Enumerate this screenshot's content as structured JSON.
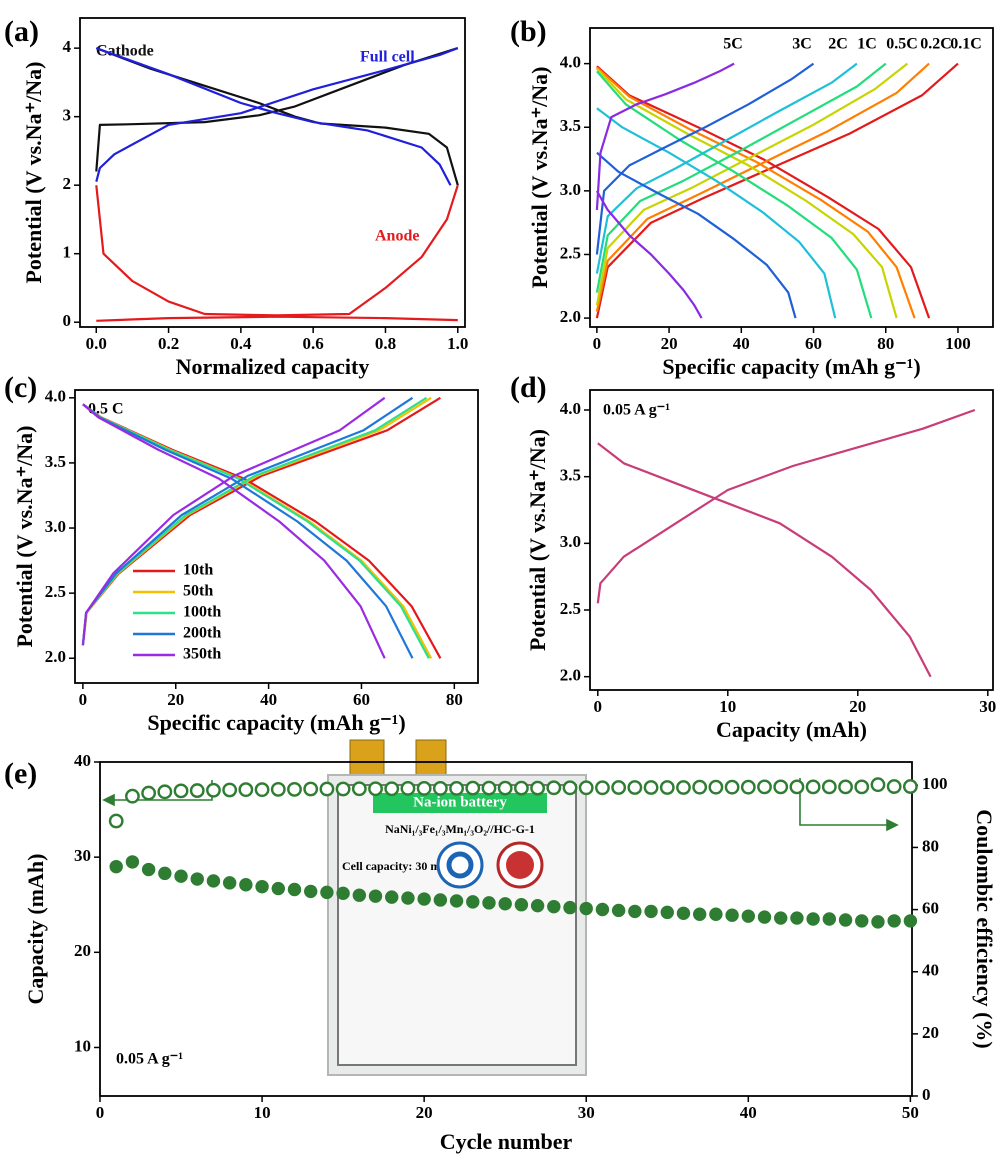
{
  "chart_data": [
    {
      "type": "line",
      "panel": "(a)",
      "xlabel": "Normalized capacity",
      "ylabel": "Potential (V vs.Na⁺/Na)",
      "xlim": [
        -0.045,
        1.02
      ],
      "ylim": [
        -0.07,
        4.44
      ],
      "xticks": [
        {
          "value": 0,
          "label": "0.0"
        },
        0.2,
        0.4,
        0.6,
        0.8,
        {
          "value": 1,
          "label": "1.0"
        }
      ],
      "yticks": [
        0,
        1,
        2,
        3,
        4
      ],
      "series": [
        {
          "name": "Cathode",
          "color": "#111111",
          "x": [
            0,
            0.01,
            0.1,
            0.3,
            0.45,
            0.55,
            0.7,
            0.85,
            1.0,
            null,
            0,
            0.15,
            0.3,
            0.45,
            0.55,
            0.62,
            0.8,
            0.92,
            0.97,
            1.0
          ],
          "values": [
            2.2,
            2.88,
            2.89,
            2.92,
            3.02,
            3.15,
            3.45,
            3.75,
            4.0,
            null,
            4.0,
            3.7,
            3.45,
            3.2,
            3.0,
            2.9,
            2.84,
            2.75,
            2.55,
            2.0
          ]
        },
        {
          "name": "Full cell",
          "color": "#1f1fdc",
          "x": [
            0,
            0.01,
            0.05,
            0.2,
            0.4,
            0.6,
            0.8,
            0.95,
            1.0,
            null,
            0,
            0.2,
            0.4,
            0.5,
            0.6,
            0.75,
            0.9,
            0.95,
            0.98
          ],
          "values": [
            2.05,
            2.25,
            2.45,
            2.88,
            3.05,
            3.4,
            3.68,
            3.9,
            4.0,
            null,
            4.0,
            3.62,
            3.2,
            3.05,
            2.92,
            2.8,
            2.55,
            2.3,
            2.0
          ]
        },
        {
          "name": "Anode",
          "color": "#e41a1c",
          "x": [
            0,
            0.02,
            0.1,
            0.2,
            0.3,
            0.5,
            0.7,
            0.8,
            0.9,
            0.97,
            1.0,
            null,
            0,
            0.2,
            0.5,
            0.8,
            1.0
          ],
          "values": [
            2.0,
            1.0,
            0.6,
            0.3,
            0.12,
            0.1,
            0.12,
            0.5,
            0.95,
            1.5,
            2.0,
            null,
            0.02,
            0.06,
            0.08,
            0.06,
            0.03
          ]
        }
      ]
    },
    {
      "type": "line",
      "panel": "(b)",
      "xlabel": "Specific capacity (mAh g⁻¹)",
      "ylabel": "Potential (V vs.Na⁺/Na)",
      "xlim": [
        -1.9,
        109.7
      ],
      "ylim": [
        1.93,
        4.28
      ],
      "xticks": [
        0,
        20,
        40,
        60,
        80,
        100
      ],
      "yticks": [
        {
          "value": 2,
          "label": "2.0"
        },
        2.5,
        {
          "value": 3,
          "label": "3.0"
        },
        3.5,
        {
          "value": 4,
          "label": "4.0"
        }
      ],
      "series": [
        {
          "name": "0.1C",
          "color": "#e31a1c",
          "x": [
            0,
            3,
            15,
            30,
            50,
            70,
            90,
            100,
            null,
            0,
            9,
            28,
            46,
            64,
            78,
            87,
            92
          ],
          "values": [
            2.0,
            2.4,
            2.75,
            2.95,
            3.2,
            3.45,
            3.75,
            4.0,
            null,
            3.98,
            3.75,
            3.5,
            3.25,
            2.95,
            2.7,
            2.4,
            2.0
          ]
        },
        {
          "name": "0.2C",
          "color": "#ff7f00",
          "x": [
            0,
            3,
            14,
            28,
            46,
            64,
            83,
            92,
            null,
            0,
            9,
            26,
            44,
            62,
            75,
            83,
            88
          ],
          "values": [
            2.05,
            2.45,
            2.78,
            2.97,
            3.22,
            3.47,
            3.77,
            4.0,
            null,
            3.97,
            3.74,
            3.48,
            3.23,
            2.93,
            2.68,
            2.4,
            2.0
          ]
        },
        {
          "name": "0.5C",
          "color": "#c8d400",
          "x": [
            0,
            3,
            13,
            26,
            43,
            60,
            77,
            86,
            null,
            0,
            8,
            25,
            42,
            58,
            71,
            79,
            83
          ],
          "values": [
            2.1,
            2.55,
            2.85,
            3.02,
            3.27,
            3.52,
            3.8,
            4.0,
            null,
            3.96,
            3.72,
            3.45,
            3.2,
            2.92,
            2.66,
            2.4,
            2.0
          ]
        },
        {
          "name": "1C",
          "color": "#22dd7a",
          "x": [
            0,
            3,
            12,
            24,
            40,
            56,
            72,
            80,
            null,
            0,
            8,
            23,
            38,
            53,
            65,
            72,
            76
          ],
          "values": [
            2.2,
            2.65,
            2.92,
            3.08,
            3.32,
            3.57,
            3.82,
            4.0,
            null,
            3.94,
            3.68,
            3.4,
            3.15,
            2.88,
            2.63,
            2.38,
            2.0
          ]
        },
        {
          "name": "2C",
          "color": "#1ec0d8",
          "x": [
            0,
            3,
            11,
            22,
            36,
            50,
            65,
            72,
            null,
            0,
            7,
            20,
            33,
            46,
            56,
            63,
            66
          ],
          "values": [
            2.35,
            2.8,
            3.02,
            3.18,
            3.4,
            3.62,
            3.85,
            4.0,
            null,
            3.65,
            3.5,
            3.3,
            3.08,
            2.83,
            2.6,
            2.35,
            2.0
          ]
        },
        {
          "name": "3C",
          "color": "#1f5fd8",
          "x": [
            0,
            2,
            9,
            18,
            30,
            42,
            54,
            60,
            null,
            0,
            6,
            17,
            28,
            38,
            47,
            53,
            55
          ],
          "values": [
            2.5,
            3.0,
            3.2,
            3.33,
            3.5,
            3.68,
            3.88,
            4.0,
            null,
            3.3,
            3.15,
            2.98,
            2.82,
            2.62,
            2.42,
            2.2,
            2.0
          ]
        },
        {
          "name": "5C",
          "color": "#8a2be2",
          "x": [
            0,
            1,
            4,
            11,
            19,
            27,
            34,
            38,
            null,
            0,
            3,
            9,
            15,
            20,
            24,
            27,
            29
          ],
          "values": [
            2.85,
            3.3,
            3.58,
            3.68,
            3.76,
            3.85,
            3.94,
            4.0,
            null,
            3.0,
            2.85,
            2.65,
            2.5,
            2.35,
            2.22,
            2.1,
            2.0
          ]
        }
      ]
    },
    {
      "type": "line",
      "panel": "(c)",
      "annotation": "0.5 C",
      "xlabel": "Specific capacity (mAh g⁻¹)",
      "ylabel": "Potential (V vs.Na⁺/Na)",
      "xlim": [
        -1.7,
        85.1
      ],
      "ylim": [
        1.81,
        4.06
      ],
      "legend": "lower-left",
      "xticks": [
        0,
        20,
        40,
        60,
        80
      ],
      "yticks": [
        {
          "value": 2,
          "label": "2.0"
        },
        2.5,
        {
          "value": 3,
          "label": "3.0"
        },
        3.5,
        {
          "value": 4,
          "label": "4.0"
        }
      ],
      "series": [
        {
          "name": "10th",
          "color": "#e31a1c",
          "x": [
            0,
            0.8,
            7.7,
            23.1,
            38.5,
            53.9,
            65.5,
            77,
            null,
            0,
            3.9,
            19.3,
            34.7,
            50.1,
            61.6,
            70.8,
            77
          ],
          "values": [
            2.1,
            2.35,
            2.65,
            3.1,
            3.4,
            3.6,
            3.75,
            4.0,
            null,
            3.95,
            3.85,
            3.6,
            3.38,
            3.05,
            2.75,
            2.4,
            2.0
          ]
        },
        {
          "name": "50th",
          "color": "#f5c000",
          "x": [
            0,
            0.8,
            7.5,
            22.5,
            37.5,
            52.5,
            63.8,
            75,
            null,
            0,
            3.8,
            18.8,
            33.8,
            48.8,
            60,
            69,
            75
          ],
          "values": [
            2.1,
            2.35,
            2.65,
            3.1,
            3.4,
            3.6,
            3.75,
            4.0,
            null,
            3.95,
            3.85,
            3.6,
            3.38,
            3.05,
            2.75,
            2.4,
            2.0
          ]
        },
        {
          "name": "100th",
          "color": "#2ee08a",
          "x": [
            0,
            0.7,
            7.4,
            22.2,
            37,
            51.8,
            62.9,
            74,
            null,
            0,
            3.7,
            18.6,
            33.5,
            48.4,
            59.6,
            68.5,
            74.5
          ],
          "values": [
            2.1,
            2.35,
            2.65,
            3.1,
            3.4,
            3.6,
            3.75,
            4.0,
            null,
            3.95,
            3.85,
            3.6,
            3.38,
            3.05,
            2.75,
            2.4,
            2.0
          ]
        },
        {
          "name": "200th",
          "color": "#1f78d8",
          "x": [
            0,
            0.7,
            7.1,
            21.3,
            35.5,
            49.7,
            60.4,
            71,
            null,
            0,
            3.6,
            17.8,
            32,
            46.2,
            56.8,
            65.3,
            71
          ],
          "values": [
            2.1,
            2.35,
            2.65,
            3.1,
            3.4,
            3.6,
            3.75,
            4.0,
            null,
            3.95,
            3.85,
            3.6,
            3.38,
            3.05,
            2.75,
            2.4,
            2.0
          ]
        },
        {
          "name": "350th",
          "color": "#9a2be2",
          "x": [
            0,
            0.7,
            6.5,
            19.5,
            32.5,
            45.5,
            55.3,
            65,
            null,
            0,
            3.3,
            16.3,
            29.3,
            42.3,
            52,
            59.8,
            65
          ],
          "values": [
            2.1,
            2.35,
            2.65,
            3.1,
            3.4,
            3.6,
            3.75,
            4.0,
            null,
            3.95,
            3.85,
            3.6,
            3.38,
            3.05,
            2.75,
            2.4,
            2.0
          ]
        }
      ]
    },
    {
      "type": "line",
      "panel": "(d)",
      "annotation": "0.05 A g⁻¹",
      "xlabel": "Capacity (mAh)",
      "ylabel": "Potential (V vs.Na⁺/Na)",
      "xlim": [
        -0.6,
        30.4
      ],
      "ylim": [
        1.9,
        4.15
      ],
      "xticks": [
        0,
        10,
        20,
        30
      ],
      "yticks": [
        {
          "value": 2,
          "label": "2.0"
        },
        2.5,
        {
          "value": 3,
          "label": "3.0"
        },
        3.5,
        {
          "value": 4,
          "label": "4.0"
        }
      ],
      "series": [
        {
          "color": "#c83c78",
          "x": [
            0,
            0.2,
            2,
            6,
            10,
            15,
            20,
            25,
            29,
            null,
            0,
            2,
            6,
            10,
            14,
            18,
            21,
            24,
            25.6
          ],
          "values": [
            2.55,
            2.7,
            2.9,
            3.15,
            3.4,
            3.58,
            3.72,
            3.86,
            4.0,
            null,
            3.75,
            3.6,
            3.45,
            3.3,
            3.15,
            2.9,
            2.65,
            2.3,
            2.0
          ]
        }
      ]
    },
    {
      "type": "scatter",
      "panel": "(e)",
      "annotation": "0.05 A g⁻¹",
      "xlabel": "Cycle number",
      "ylabel": "Capacity (mAh)",
      "y2label": "Coulombic efficiency (%)",
      "xlim": [
        0,
        50.1
      ],
      "ylim": [
        4.9,
        40
      ],
      "y2lim": [
        0,
        107.5
      ],
      "xticks": [
        0,
        10,
        20,
        30,
        40,
        50
      ],
      "yticks": [
        10,
        20,
        30,
        40
      ],
      "y2ticks": [
        0,
        20,
        40,
        60,
        80,
        100
      ],
      "inset": {
        "title": "Na-ion battery",
        "formula": "NaNi₁/₃Fe₁/₃Mn₁/₃O₂//HC-G-1",
        "capacity": "Cell capacity: 30 mAh"
      },
      "x": [
        1,
        2,
        3,
        4,
        5,
        6,
        7,
        8,
        9,
        10,
        11,
        12,
        13,
        14,
        15,
        16,
        17,
        18,
        19,
        20,
        21,
        22,
        23,
        24,
        25,
        26,
        27,
        28,
        29,
        30,
        31,
        32,
        33,
        34,
        35,
        36,
        37,
        38,
        39,
        40,
        41,
        42,
        43,
        44,
        45,
        46,
        47,
        48,
        49,
        50
      ],
      "series": [
        {
          "color": "#2e7d32",
          "marker": "filled",
          "values": [
            29.0,
            29.5,
            28.7,
            28.3,
            28.0,
            27.7,
            27.5,
            27.3,
            27.1,
            26.9,
            26.7,
            26.6,
            26.4,
            26.3,
            26.2,
            26.0,
            25.9,
            25.8,
            25.7,
            25.6,
            25.5,
            25.4,
            25.3,
            25.2,
            25.1,
            25.0,
            24.9,
            24.8,
            24.7,
            24.6,
            24.5,
            24.4,
            24.3,
            24.3,
            24.2,
            24.1,
            24.0,
            24.0,
            23.9,
            23.8,
            23.7,
            23.6,
            23.6,
            23.5,
            23.5,
            23.4,
            23.3,
            23.2,
            23.3,
            23.3
          ]
        },
        {
          "color": "#2e7d32",
          "marker": "open",
          "axis": "y2",
          "values": [
            88.5,
            96.5,
            97.5,
            97.9,
            98.2,
            98.3,
            98.4,
            98.5,
            98.6,
            98.6,
            98.7,
            98.7,
            98.8,
            98.8,
            98.8,
            98.9,
            98.9,
            98.9,
            99.0,
            99.0,
            99.0,
            99.0,
            99.1,
            99.1,
            99.1,
            99.1,
            99.1,
            99.2,
            99.2,
            99.2,
            99.2,
            99.3,
            99.3,
            99.3,
            99.3,
            99.3,
            99.4,
            99.4,
            99.4,
            99.4,
            99.5,
            99.5,
            99.5,
            99.5,
            99.5,
            99.5,
            99.5,
            100.2,
            99.6,
            99.6
          ]
        }
      ]
    }
  ]
}
